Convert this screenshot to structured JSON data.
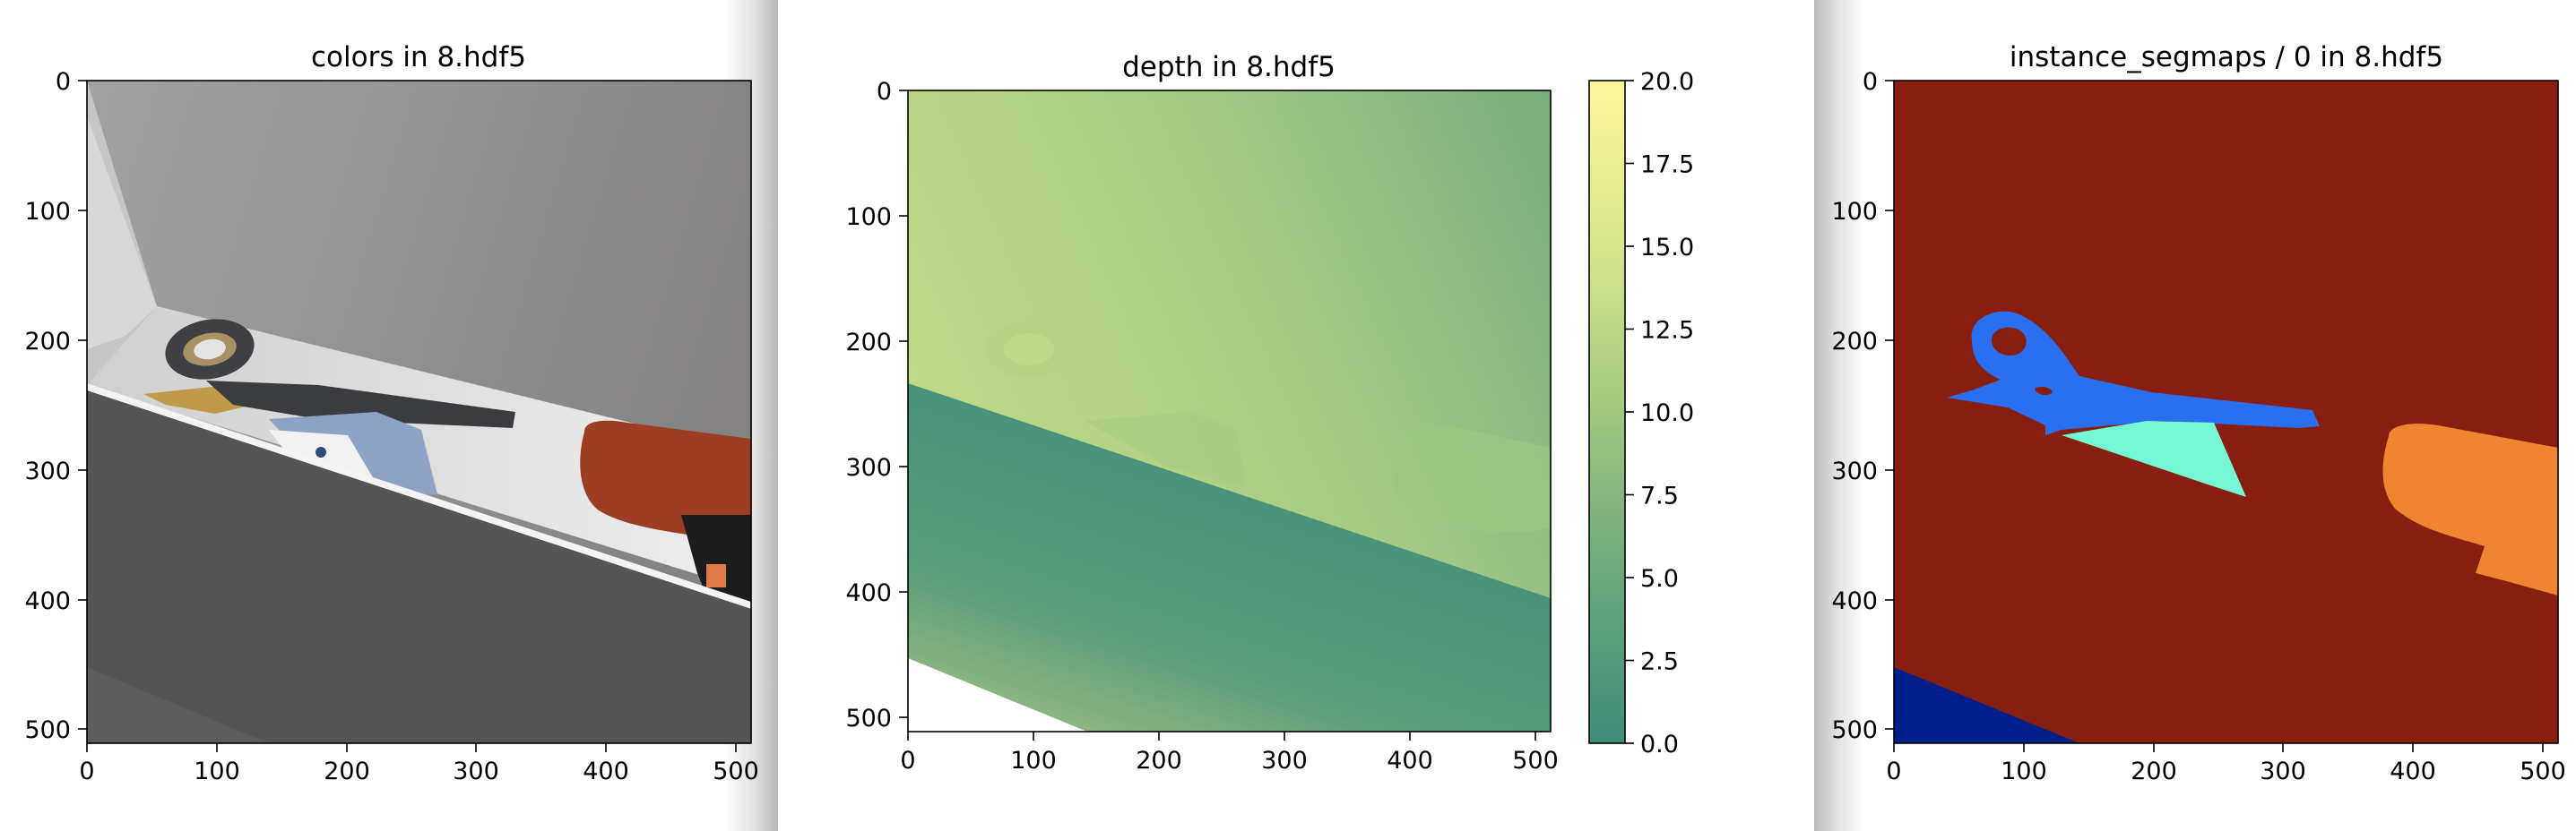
{
  "chart_data": [
    {
      "type": "heatmap",
      "title": "colors in 8.hdf5",
      "xlabel": "",
      "ylabel": "",
      "xlim": [
        0,
        512
      ],
      "ylim": [
        512,
        0
      ],
      "x_ticks": [
        "0",
        "100",
        "200",
        "300",
        "400",
        "500"
      ],
      "y_ticks": [
        "0",
        "100",
        "200",
        "300",
        "400",
        "500"
      ],
      "colorbar": false,
      "content": "rendered RGB image: scissors, folded cloth and a red tool on a shelf"
    },
    {
      "type": "heatmap",
      "title": "depth in 8.hdf5",
      "xlabel": "",
      "ylabel": "",
      "xlim": [
        0,
        512
      ],
      "ylim": [
        512,
        0
      ],
      "x_ticks": [
        "0",
        "100",
        "200",
        "300",
        "400",
        "500"
      ],
      "y_ticks": [
        "0",
        "100",
        "200",
        "300",
        "400",
        "500"
      ],
      "colorbar": true,
      "colorbar_range": [
        0,
        20
      ],
      "colorbar_ticks": [
        "0.0",
        "2.5",
        "5.0",
        "7.5",
        "10.0",
        "12.5",
        "15.0",
        "17.5",
        "20.0"
      ],
      "colormap": [
        "#3e8c7a",
        "#6aa87e",
        "#a2c67e",
        "#e4ec92",
        "#fcf79c"
      ]
    },
    {
      "type": "heatmap",
      "title": "instance_segmaps / 0 in 8.hdf5",
      "xlabel": "",
      "ylabel": "",
      "xlim": [
        0,
        512
      ],
      "ylim": [
        512,
        0
      ],
      "x_ticks": [
        "0",
        "100",
        "200",
        "300",
        "400",
        "500"
      ],
      "y_ticks": [
        "0",
        "100",
        "200",
        "300",
        "400",
        "500"
      ],
      "colorbar": false,
      "segment_colors": [
        "#881e10",
        "#2a6ff0",
        "#76f7d3",
        "#f08430",
        "#001f8a"
      ]
    }
  ],
  "colors": {
    "background": "#ffffff",
    "seam_shadow": "#b5b5b5"
  }
}
